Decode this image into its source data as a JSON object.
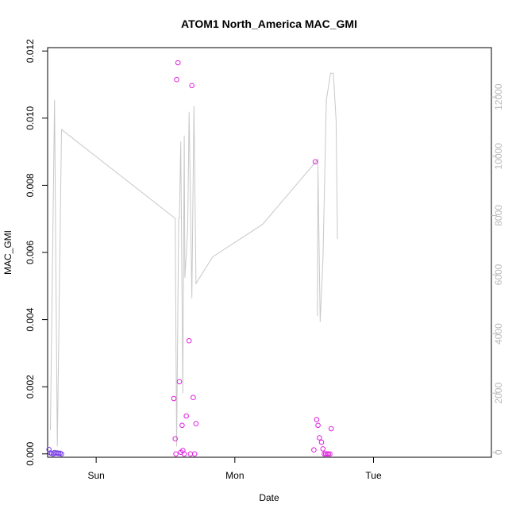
{
  "chart_data": {
    "type": "scatter",
    "title": "ATOM1 North_America MAC_GMI",
    "xlabel": "Date",
    "ylabel": "MAC_GMI",
    "y2label": "",
    "grid": false,
    "x_axis": {
      "unit": "days",
      "range": [
        -0.35,
        2.85
      ],
      "ticks": [
        {
          "value": 0,
          "label": "Sun"
        },
        {
          "value": 1,
          "label": "Mon"
        },
        {
          "value": 2,
          "label": "Tue"
        }
      ]
    },
    "y_axis": {
      "range": [
        -0.0001,
        0.0121
      ],
      "ticks": [
        "0.000",
        "0.002",
        "0.004",
        "0.006",
        "0.008",
        "0.010",
        "0.012"
      ],
      "tick_values": [
        0,
        0.002,
        0.004,
        0.006,
        0.008,
        0.01,
        0.012
      ]
    },
    "y2_axis": {
      "range": [
        -166,
        13667
      ],
      "ticks": [
        "0",
        "2000",
        "4000",
        "6000",
        "8000",
        "10000",
        "12000"
      ],
      "tick_values": [
        0,
        2000,
        4000,
        6000,
        8000,
        10000,
        12000
      ],
      "color": "#bbbbbb"
    },
    "line_series": {
      "axis": "right",
      "color": "#c8c8c8",
      "points": [
        [
          -0.33,
          750
        ],
        [
          -0.3,
          11900
        ],
        [
          -0.28,
          200
        ],
        [
          -0.25,
          10900
        ],
        [
          0.57,
          7900
        ],
        [
          0.58,
          200
        ],
        [
          0.595,
          7900
        ],
        [
          0.6,
          7900
        ],
        [
          0.61,
          10500
        ],
        [
          0.625,
          2000
        ],
        [
          0.635,
          10700
        ],
        [
          0.64,
          5900
        ],
        [
          0.66,
          7500
        ],
        [
          0.67,
          11500
        ],
        [
          0.69,
          5200
        ],
        [
          0.705,
          11700
        ],
        [
          0.72,
          5700
        ],
        [
          0.84,
          6600
        ],
        [
          1.2,
          7700
        ],
        [
          1.6,
          9900
        ],
        [
          1.595,
          4600
        ],
        [
          1.6,
          9500
        ],
        [
          1.615,
          4400
        ],
        [
          1.635,
          6500
        ],
        [
          1.66,
          11900
        ],
        [
          1.69,
          12800
        ],
        [
          1.71,
          12800
        ],
        [
          1.73,
          11200
        ],
        [
          1.74,
          7200
        ]
      ]
    },
    "scatter_series": {
      "axis": "left",
      "marker": "open-circle",
      "points": [
        {
          "x": -0.34,
          "y": 0.00013,
          "c": "#7a3fe6"
        },
        {
          "x": -0.33,
          "y": 3e-05,
          "c": "#7a3fe6"
        },
        {
          "x": -0.32,
          "y": 1e-05,
          "c": "#7a3fe6"
        },
        {
          "x": -0.31,
          "y": 0.0,
          "c": "#7a3fe6"
        },
        {
          "x": -0.3,
          "y": 4e-05,
          "c": "#7a3fe6"
        },
        {
          "x": -0.29,
          "y": 2e-05,
          "c": "#7a3fe6"
        },
        {
          "x": -0.28,
          "y": 3e-05,
          "c": "#7a3fe6"
        },
        {
          "x": -0.27,
          "y": 1e-05,
          "c": "#7a3fe6"
        },
        {
          "x": -0.26,
          "y": 2e-05,
          "c": "#7a3fe6"
        },
        {
          "x": -0.25,
          "y": 0.0,
          "c": "#7a3fe6"
        },
        {
          "x": 0.56,
          "y": 0.00165,
          "c": "#e020e0"
        },
        {
          "x": 0.57,
          "y": 0.00045,
          "c": "#e020e0"
        },
        {
          "x": 0.575,
          "y": 0.0,
          "c": "#e020e0"
        },
        {
          "x": 0.58,
          "y": 0.01115,
          "c": "#e020e0"
        },
        {
          "x": 0.59,
          "y": 0.01165,
          "c": "#e020e0"
        },
        {
          "x": 0.6,
          "y": 0.00215,
          "c": "#e020e0"
        },
        {
          "x": 0.61,
          "y": 5e-05,
          "c": "#e020e0"
        },
        {
          "x": 0.62,
          "y": 0.00085,
          "c": "#e020e0"
        },
        {
          "x": 0.625,
          "y": 0.0001,
          "c": "#e020e0"
        },
        {
          "x": 0.635,
          "y": 0.0,
          "c": "#e020e0"
        },
        {
          "x": 0.65,
          "y": 0.00113,
          "c": "#e020e0"
        },
        {
          "x": 0.67,
          "y": 0.00337,
          "c": "#e020e0"
        },
        {
          "x": 0.68,
          "y": 0.0,
          "c": "#e020e0"
        },
        {
          "x": 0.69,
          "y": 0.01097,
          "c": "#e020e0"
        },
        {
          "x": 0.7,
          "y": 0.00168,
          "c": "#e020e0"
        },
        {
          "x": 0.71,
          "y": 0.0,
          "c": "#e020e0"
        },
        {
          "x": 0.72,
          "y": 0.0009,
          "c": "#e020e0"
        },
        {
          "x": 1.57,
          "y": 0.00012,
          "c": "#e020e0"
        },
        {
          "x": 1.58,
          "y": 0.0087,
          "c": "#e020e0"
        },
        {
          "x": 1.59,
          "y": 0.00102,
          "c": "#e020e0"
        },
        {
          "x": 1.6,
          "y": 0.00085,
          "c": "#e020e0"
        },
        {
          "x": 1.61,
          "y": 0.00048,
          "c": "#e020e0"
        },
        {
          "x": 1.625,
          "y": 0.00035,
          "c": "#e020e0"
        },
        {
          "x": 1.635,
          "y": 0.00015,
          "c": "#e020e0"
        },
        {
          "x": 1.645,
          "y": 0.0,
          "c": "#e020e0"
        },
        {
          "x": 1.655,
          "y": 0.0,
          "c": "#e020e0"
        },
        {
          "x": 1.665,
          "y": 0.0,
          "c": "#e020e0"
        },
        {
          "x": 1.675,
          "y": 0.0,
          "c": "#e020e0"
        },
        {
          "x": 1.685,
          "y": 0.0,
          "c": "#e020e0"
        },
        {
          "x": 1.695,
          "y": 0.00075,
          "c": "#e020e0"
        }
      ]
    }
  }
}
